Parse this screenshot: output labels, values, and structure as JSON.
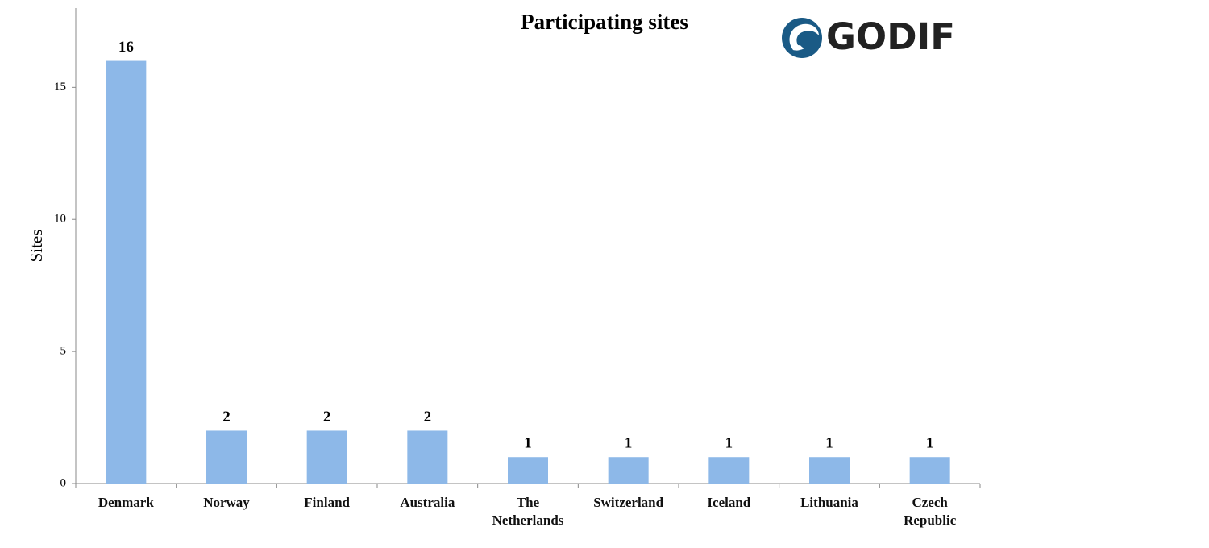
{
  "chart_data": {
    "type": "bar",
    "title": "Participating sites",
    "y_label": "Sites",
    "categories": [
      "Denmark",
      "Norway",
      "Finland",
      "Australia",
      "The Netherlands",
      "Switzerland",
      "Iceland",
      "Lithuania",
      "Czech Republic"
    ],
    "values": [
      16,
      2,
      2,
      2,
      1,
      1,
      1,
      1,
      1
    ],
    "color": "#8db8e8",
    "ylim": [
      0,
      18
    ],
    "yticks": [
      0,
      5,
      10,
      15
    ],
    "grid": false
  },
  "logo": "GODIF"
}
